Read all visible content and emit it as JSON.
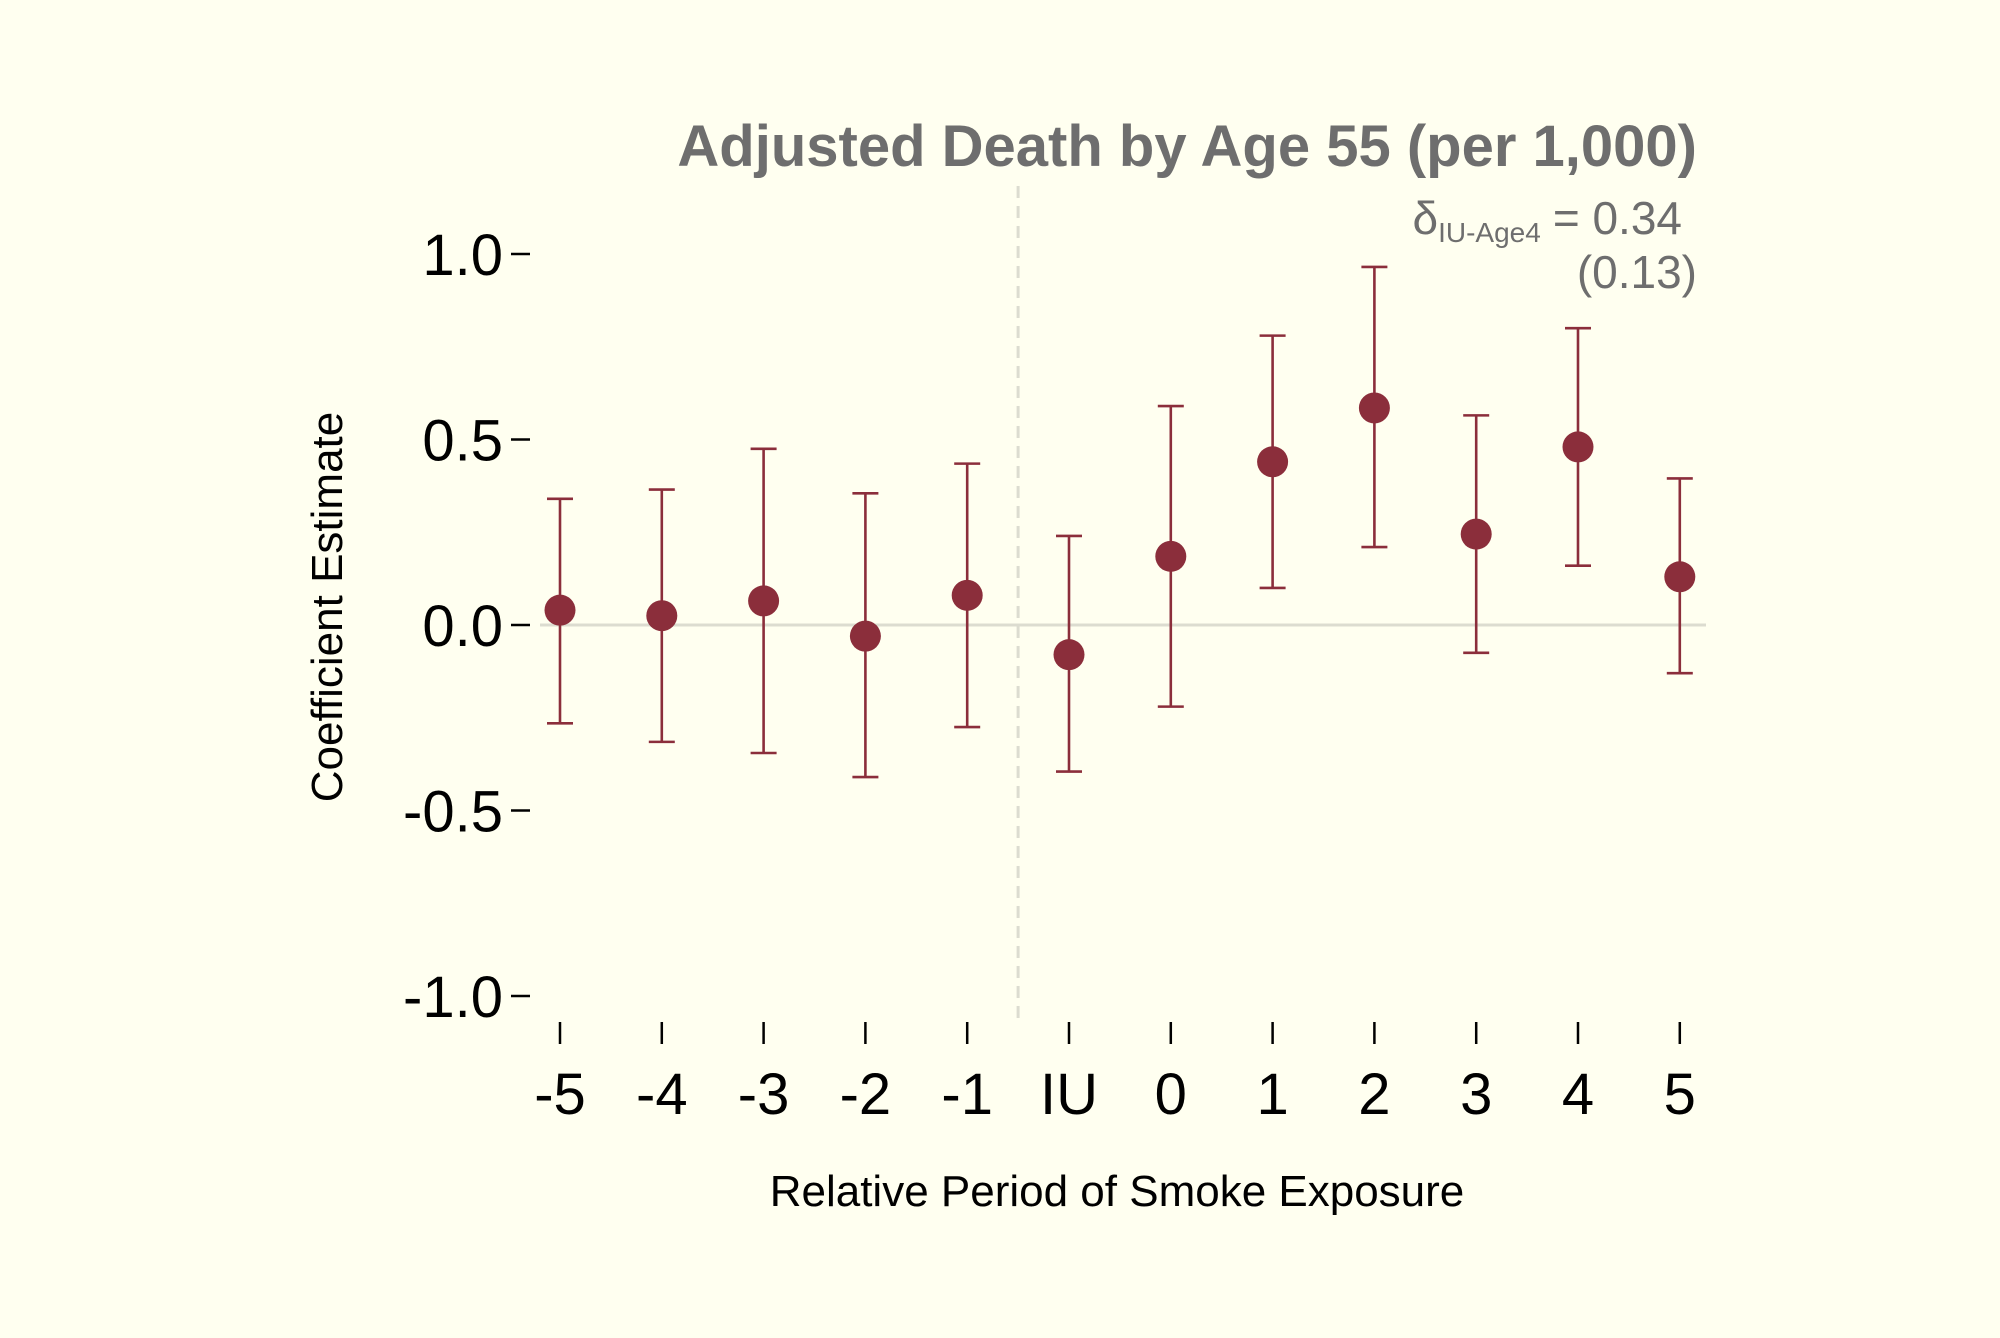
{
  "chart_data": {
    "type": "scatter",
    "title": "Adjusted Death by Age 55 (per 1,000)",
    "xlabel": "Relative Period of Smoke Exposure",
    "ylabel": "Coefficient Estimate",
    "categories": [
      "-5",
      "-4",
      "-3",
      "-2",
      "-1",
      "IU",
      "0",
      "1",
      "2",
      "3",
      "4",
      "5"
    ],
    "series": [
      {
        "values": [
          0.04,
          0.025,
          0.065,
          -0.03,
          0.08,
          -0.08,
          0.185,
          0.44,
          0.585,
          0.245,
          0.48,
          0.13
        ],
        "ci_lower": [
          -0.265,
          -0.315,
          -0.345,
          -0.41,
          -0.275,
          -0.395,
          -0.22,
          0.1,
          0.21,
          -0.075,
          0.16,
          -0.13
        ],
        "ci_upper": [
          0.34,
          0.365,
          0.475,
          0.355,
          0.435,
          0.24,
          0.59,
          0.78,
          0.965,
          0.565,
          0.8,
          0.395
        ]
      }
    ],
    "ylim": [
      -1.0,
      1.0
    ],
    "yticks": [
      "1.0",
      "0.5",
      "0.0",
      "-0.5",
      "-1.0"
    ],
    "ytick_values": [
      1.0,
      0.5,
      0.0,
      -0.5,
      -1.0
    ],
    "reference_hline": 0,
    "reference_vline_between": [
      "-1",
      "IU"
    ],
    "annotation": {
      "symbol": "δ",
      "subscript": "IU-Age4",
      "equals": "= 0.34",
      "se": "(0.13)"
    },
    "colors": {
      "marker": "#8b2e3b",
      "reference": "#dcdcd0",
      "title": "#6e6e6e",
      "text": "#000000",
      "background": "#fffff0"
    },
    "grid": false,
    "legend": "none"
  }
}
